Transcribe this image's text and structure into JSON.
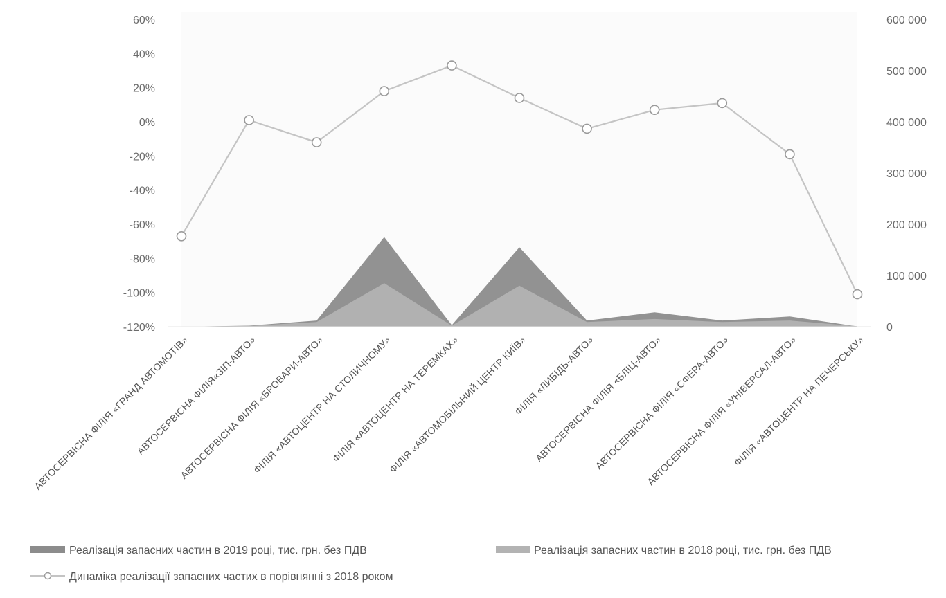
{
  "chart_data": {
    "type": "area",
    "categories": [
      "АВТОСЕРВІСНА ФІЛІЯ «ГРАНД АВТОМОТІВ»",
      "АВТОСЕРВІСНА ФІЛІЯ«ЗІП-АВТО»",
      "АВТОСЕРВІСНА ФІЛІЯ «БРОВАРИ-АВТО»",
      "ФІЛІЯ «АВТОЦЕНТР НА СТОЛИЧНОМУ»",
      "ФІЛІЯ «АВТОЦЕНТР НА ТЕРЕМКАХ»",
      "ФІЛІЯ «АВТОМОБІЛЬНИЙ ЦЕНТР КИЇВ»",
      "ФІЛІЯ «ЛИБІДЬ-АВТО»",
      "АВТОСЕРВІСНА ФІЛІЯ «БЛІЦ-АВТО»",
      "АВТОСЕРВІСНА ФІЛІЯ «СФЕРА-АВТО»",
      "АВТОСЕРВІСНА ФІЛІЯ «УНІВЕРСАЛ-АВТО»",
      "ФІЛІЯ «АВТОЦЕНТР НА ПЕЧЕРСЬКУ»"
    ],
    "series": [
      {
        "name": "Реалізація запасних частин в 2019 році, тис. грн. без ПДВ",
        "kind": "area",
        "axis": "right",
        "color": "#8c8c8c",
        "values": [
          0,
          2000,
          12000,
          175000,
          3000,
          155000,
          12000,
          28000,
          12000,
          20000,
          500
        ]
      },
      {
        "name": "Реалізація запасних частин в 2018 році, тис. грн. без ПДВ",
        "kind": "area",
        "axis": "right",
        "color": "#b3b3b3",
        "values": [
          0,
          1500,
          9000,
          85000,
          2000,
          80000,
          9000,
          15000,
          9000,
          12000,
          1000
        ]
      },
      {
        "name": "Динаміка реалізації запасних частих в порівнянні з 2018 роком",
        "kind": "line",
        "axis": "left",
        "color": "#c4c4c4",
        "values": [
          -0.67,
          0.01,
          -0.12,
          0.18,
          0.33,
          0.14,
          -0.04,
          0.07,
          0.11,
          -0.19,
          -1.01
        ]
      }
    ],
    "left_axis": {
      "min": -1.2,
      "max": 0.6,
      "ticks": [
        "60%",
        "40%",
        "20%",
        "0%",
        "-20%",
        "-40%",
        "-60%",
        "-80%",
        "-100%",
        "-120%"
      ]
    },
    "right_axis": {
      "min": 0,
      "max": 600000,
      "ticks": [
        "600 000",
        "500 000",
        "400 000",
        "300 000",
        "200 000",
        "100 000",
        "0"
      ]
    },
    "grid": false,
    "legend_position": "bottom"
  }
}
